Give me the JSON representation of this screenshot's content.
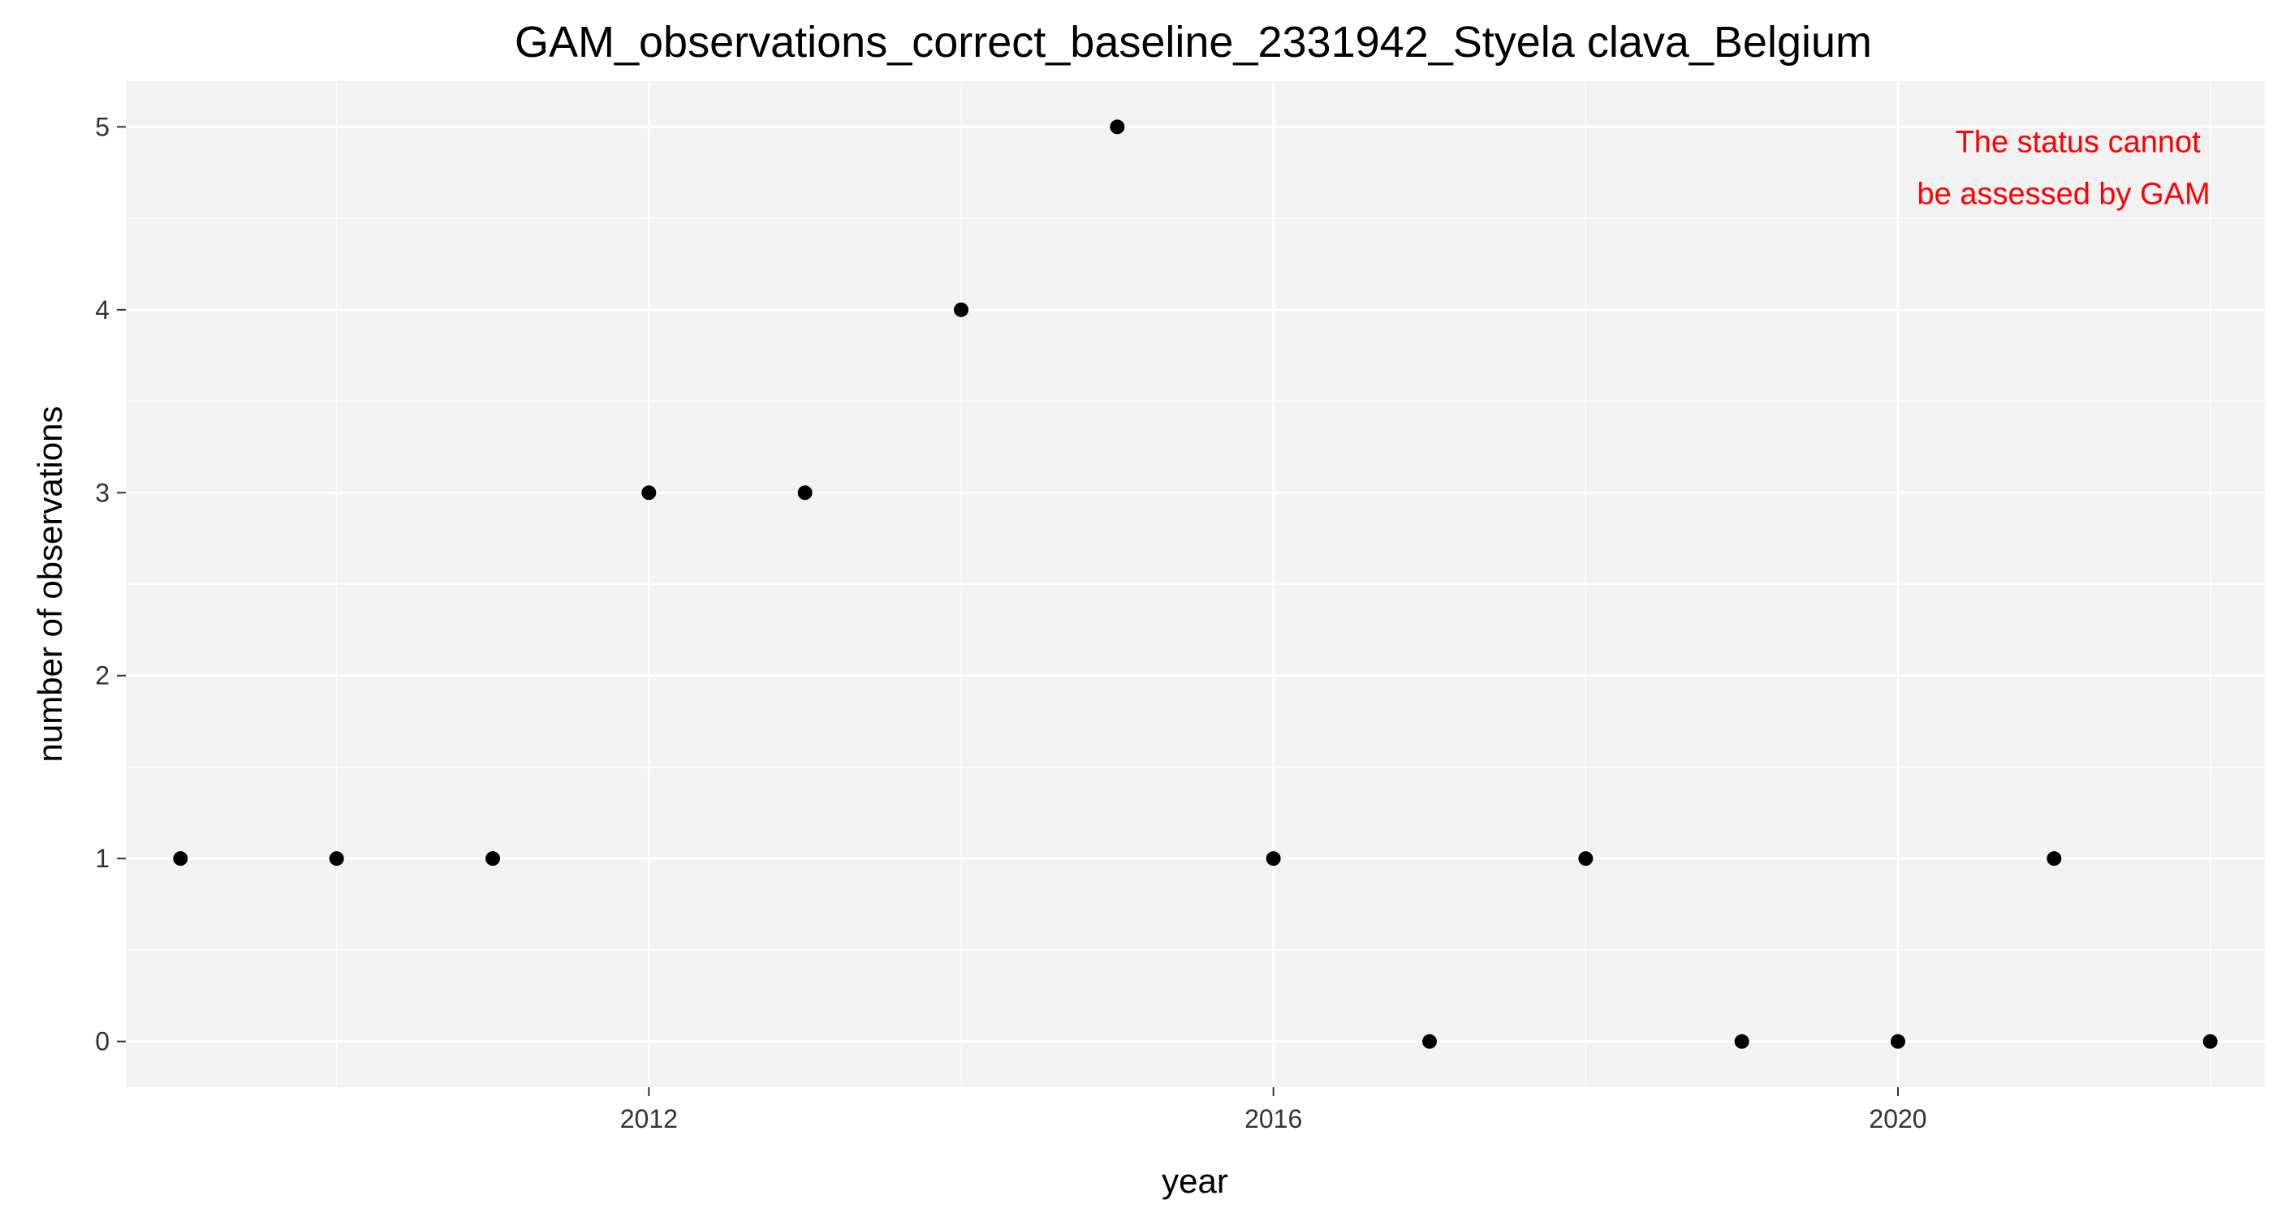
{
  "chart_data": {
    "type": "scatter",
    "title": "GAM_observations_correct_baseline_2331942_Styela clava_Belgium",
    "xlabel": "year",
    "ylabel": "number of observations",
    "xlim": [
      2008.65,
      2022.35
    ],
    "ylim": [
      -0.25,
      5.25
    ],
    "x_ticks": [
      2012,
      2016,
      2020
    ],
    "y_ticks": [
      0,
      1,
      2,
      3,
      4,
      5
    ],
    "x_minor_ticks": [
      2010,
      2014,
      2018,
      2022
    ],
    "y_minor_ticks": [
      0.5,
      1.5,
      2.5,
      3.5,
      4.5
    ],
    "grid": true,
    "legend": "none",
    "colors": {
      "panel_background": "#f2f2f2",
      "grid": "#ffffff",
      "point": "#000000",
      "annotation": "#ff0000"
    },
    "points": [
      {
        "x": 2009,
        "y": 1
      },
      {
        "x": 2010,
        "y": 1
      },
      {
        "x": 2011,
        "y": 1
      },
      {
        "x": 2012,
        "y": 3
      },
      {
        "x": 2013,
        "y": 3
      },
      {
        "x": 2014,
        "y": 4
      },
      {
        "x": 2015,
        "y": 5
      },
      {
        "x": 2016,
        "y": 1
      },
      {
        "x": 2017,
        "y": 0
      },
      {
        "x": 2018,
        "y": 1
      },
      {
        "x": 2019,
        "y": 0
      },
      {
        "x": 2020,
        "y": 0
      },
      {
        "x": 2021,
        "y": 1
      },
      {
        "x": 2022,
        "y": 0
      }
    ],
    "annotation": {
      "lines": [
        "The status cannot",
        "be assessed by GAM"
      ],
      "x": 2022,
      "y": 5,
      "placement": "top-right"
    }
  }
}
